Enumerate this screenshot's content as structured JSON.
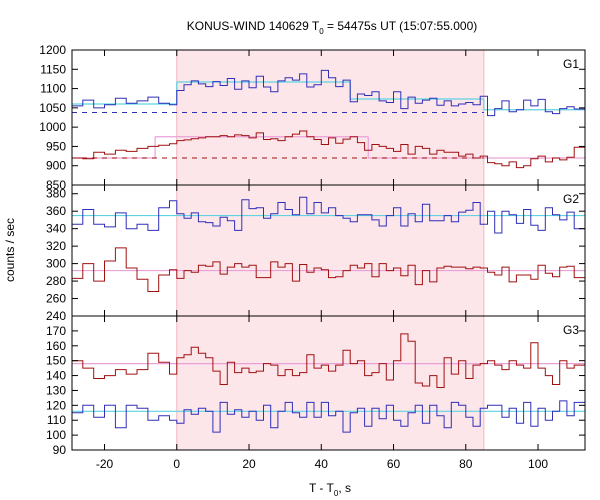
{
  "chart_data": {
    "type": "line",
    "title_main": "KONUS-WIND 140629 T",
    "title_sub": "0",
    "title_rest": " = 54475s UT (15:07:55.000)",
    "xlabel_main": "T - T",
    "xlabel_sub": "0",
    "xlabel_rest": ", s",
    "ylabel": "counts / sec",
    "xlim": [
      -29,
      113
    ],
    "x_ticks": [
      -20,
      0,
      20,
      40,
      60,
      80,
      100
    ],
    "x_tick_labels": [
      "-20",
      "0",
      "20",
      "40",
      "60",
      "80",
      "100"
    ],
    "highlight_interval": [
      0,
      85
    ],
    "colors": {
      "blue": "#2f2fb8",
      "red": "#a01010",
      "cyan": "#5fd3e2",
      "pink": "#e9a0d8",
      "shade": "#fde6ea"
    },
    "panels": [
      {
        "label": "G1",
        "ylim": [
          850,
          1200
        ],
        "yticks": [
          850,
          900,
          950,
          1000,
          1050,
          1100,
          1150,
          1200
        ],
        "ytick_labels": [
          "850",
          "900",
          "950",
          "1000",
          "1050",
          "1100",
          "1150",
          "1200"
        ],
        "bin_edges": [
          -29,
          -26,
          -23,
          -20,
          -17,
          -14,
          -11,
          -8,
          -5,
          -2,
          0,
          2,
          4,
          6,
          8,
          10,
          12,
          14,
          16,
          18,
          20,
          22,
          24,
          26,
          28,
          30,
          32,
          34,
          36,
          38,
          40,
          42,
          44,
          46,
          48,
          50,
          52,
          54,
          56,
          58,
          60,
          62,
          64,
          66,
          68,
          70,
          72,
          74,
          76,
          78,
          80,
          82,
          84,
          86,
          88,
          90,
          92,
          94,
          96,
          98,
          100,
          102,
          104,
          106,
          108,
          110,
          113
        ],
        "series": [
          {
            "color": "blue",
            "values": [
              1055,
              1070,
              1050,
              1058,
              1075,
              1062,
              1068,
              1078,
              1062,
              1058,
              1095,
              1110,
              1120,
              1112,
              1105,
              1118,
              1108,
              1126,
              1098,
              1120,
              1102,
              1132,
              1104,
              1092,
              1120,
              1128,
              1122,
              1138,
              1104,
              1110,
              1147,
              1128,
              1105,
              1122,
              1066,
              1086,
              1082,
              1092,
              1068,
              1064,
              1092,
              1048,
              1078,
              1062,
              1070,
              1075,
              1057,
              1068,
              1055,
              1060,
              1064,
              1058,
              1080,
              1030,
              1048,
              1068,
              1040,
              1045,
              1070,
              1055,
              1072,
              1040,
              1035,
              1048,
              1053,
              1047
            ]
          },
          {
            "color": "red",
            "values": [
              920,
              918,
              935,
              930,
              940,
              937,
              945,
              950,
              953,
              957,
              965,
              967,
              970,
              972,
              975,
              975,
              978,
              975,
              980,
              978,
              972,
              985,
              968,
              970,
              965,
              975,
              982,
              990,
              975,
              968,
              955,
              972,
              958,
              969,
              975,
              960,
              940,
              955,
              950,
              945,
              937,
              955,
              930,
              950,
              945,
              930,
              940,
              935,
              935,
              925,
              930,
              920,
              925,
              908,
              905,
              900,
              910,
              895,
              900,
              918,
              925,
              910,
              920,
              915,
              922,
              948
            ]
          }
        ],
        "background_levels": [
          {
            "color": "blue",
            "value": 1038
          },
          {
            "color": "red",
            "value": 920
          }
        ],
        "model_steps": [
          {
            "color": "cyan",
            "steps": [
              [
                -29,
                0,
                1060
              ],
              [
                0,
                48,
                1117
              ],
              [
                48,
                85,
                1073
              ],
              [
                85,
                113,
                1045
              ]
            ]
          },
          {
            "color": "pink",
            "steps": [
              [
                -29,
                -6,
                920
              ],
              [
                -6,
                53,
                975
              ],
              [
                53,
                85,
                920
              ],
              [
                85,
                113,
                920
              ]
            ]
          }
        ]
      },
      {
        "label": "G2",
        "ylim": [
          240,
          390
        ],
        "yticks": [
          240,
          260,
          280,
          300,
          320,
          340,
          360,
          380
        ],
        "ytick_labels": [
          "240",
          "260",
          "280",
          "300",
          "320",
          "340",
          "360",
          "380"
        ],
        "bin_edges": [
          -29,
          -26,
          -23,
          -20,
          -17,
          -14,
          -11,
          -8,
          -5,
          -2,
          0,
          2,
          4,
          6,
          8,
          10,
          12,
          14,
          16,
          18,
          20,
          22,
          24,
          26,
          28,
          30,
          32,
          34,
          36,
          38,
          40,
          42,
          44,
          46,
          48,
          50,
          52,
          54,
          56,
          58,
          60,
          62,
          64,
          66,
          68,
          70,
          72,
          74,
          76,
          78,
          80,
          82,
          84,
          86,
          88,
          90,
          92,
          94,
          96,
          98,
          100,
          102,
          104,
          106,
          108,
          110,
          113
        ],
        "series": [
          {
            "color": "blue",
            "values": [
              345,
              362,
              345,
              342,
              358,
              340,
              345,
              338,
              364,
              372,
              357,
              352,
              358,
              348,
              347,
              343,
              353,
              349,
              338,
              373,
              363,
              364,
              352,
              357,
              370,
              362,
              356,
              376,
              357,
              370,
              358,
              364,
              355,
              352,
              348,
              356,
              356,
              350,
              343,
              355,
              364,
              343,
              357,
              348,
              368,
              349,
              349,
              355,
              348,
              359,
              361,
              370,
              345,
              360,
              335,
              360,
              356,
              346,
              362,
              344,
              338,
              364,
              356,
              350,
              359,
              340
            ]
          },
          {
            "color": "red",
            "values": [
              283,
              300,
              280,
              303,
              318,
              295,
              282,
              268,
              287,
              293,
              283,
              292,
              290,
              298,
              297,
              302,
              288,
              296,
              300,
              296,
              298,
              284,
              284,
              302,
              296,
              300,
              280,
              299,
              290,
              295,
              293,
              284,
              285,
              292,
              298,
              295,
              300,
              285,
              300,
              292,
              295,
              286,
              298,
              276,
              292,
              279,
              295,
              297,
              296,
              296,
              294,
              296,
              295,
              290,
              287,
              296,
              279,
              287,
              287,
              282,
              298,
              289,
              285,
              296,
              297,
              284
            ]
          }
        ],
        "background_levels": [],
        "model_steps": [
          {
            "color": "cyan",
            "steps": [
              [
                -29,
                113,
                355
              ]
            ]
          },
          {
            "color": "pink",
            "steps": [
              [
                -29,
                113,
                292
              ]
            ]
          }
        ]
      },
      {
        "label": "G3",
        "ylim": [
          90,
          180
        ],
        "yticks": [
          90,
          100,
          110,
          120,
          130,
          140,
          150,
          160,
          170
        ],
        "ytick_labels": [
          "90",
          "100",
          "110",
          "120",
          "130",
          "140",
          "150",
          "160",
          "170"
        ],
        "bin_edges": [
          -29,
          -26,
          -23,
          -20,
          -17,
          -14,
          -11,
          -8,
          -5,
          -2,
          0,
          2,
          4,
          6,
          8,
          10,
          12,
          14,
          16,
          18,
          20,
          22,
          24,
          26,
          28,
          30,
          32,
          34,
          36,
          38,
          40,
          42,
          44,
          46,
          48,
          50,
          52,
          54,
          56,
          58,
          60,
          62,
          64,
          66,
          68,
          70,
          72,
          74,
          76,
          78,
          80,
          82,
          84,
          86,
          88,
          90,
          92,
          94,
          96,
          98,
          100,
          102,
          104,
          106,
          108,
          110,
          113
        ],
        "series": [
          {
            "color": "red",
            "values": [
              150,
              145,
              138,
              140,
              144,
              141,
              144,
              155,
              149,
              141,
              152,
              154,
              159,
              155,
              152,
              143,
              134,
              149,
              142,
              145,
              142,
              143,
              148,
              147,
              140,
              144,
              140,
              142,
              154,
              145,
              147,
              143,
              147,
              157,
              148,
              150,
              140,
              142,
              148,
              137,
              150,
              168,
              163,
              135,
              133,
              140,
              132,
              152,
              141,
              150,
              138,
              147,
              148,
              150,
              147,
              144,
              150,
              147,
              145,
              162,
              145,
              140,
              134,
              150,
              145,
              147
            ]
          },
          {
            "color": "blue",
            "values": [
              115,
              120,
              112,
              120,
              105,
              120,
              118,
              110,
              113,
              110,
              108,
              117,
              114,
              118,
              116,
              102,
              122,
              114,
              117,
              112,
              116,
              110,
              120,
              105,
              116,
              122,
              115,
              112,
              122,
              112,
              122,
              113,
              116,
              102,
              115,
              118,
              106,
              118,
              111,
              120,
              110,
              106,
              115,
              120,
              108,
              120,
              113,
              105,
              122,
              120,
              112,
              106,
              118,
              120,
              120,
              112,
              118,
              108,
              122,
              106,
              118,
              110,
              116,
              123,
              113,
              122
            ]
          }
        ],
        "background_levels": [],
        "model_steps": [
          {
            "color": "cyan",
            "steps": [
              [
                -29,
                113,
                116
              ]
            ]
          },
          {
            "color": "pink",
            "steps": [
              [
                -29,
                113,
                148
              ]
            ]
          }
        ]
      }
    ]
  }
}
